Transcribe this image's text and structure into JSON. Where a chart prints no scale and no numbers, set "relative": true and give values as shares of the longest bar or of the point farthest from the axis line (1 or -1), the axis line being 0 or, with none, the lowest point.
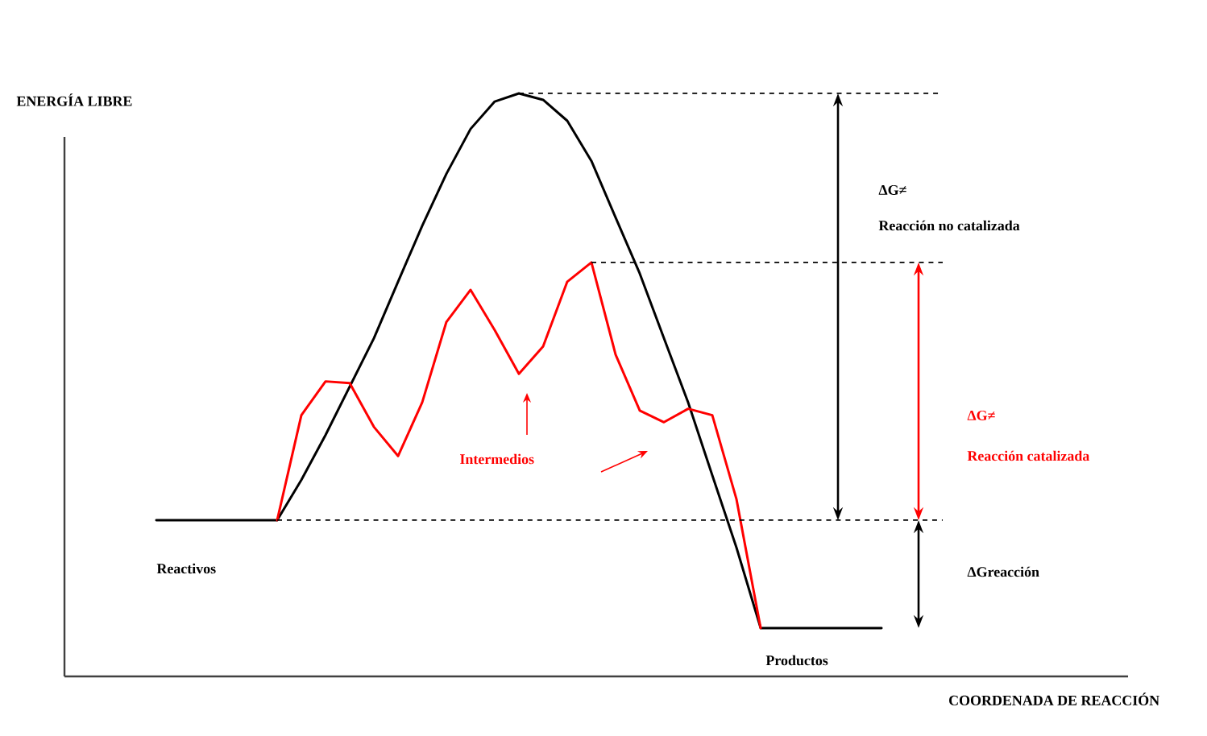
{
  "chart_data": {
    "type": "line",
    "relative": true,
    "xlabel": "COORDENADA  DE REACCIÓN",
    "ylabel": "ENERGÍA LIBRE",
    "marker": "none",
    "line_style": "solid",
    "categories": [
      null,
      null,
      null,
      null,
      null,
      null,
      null,
      null,
      null,
      null,
      null,
      null,
      null,
      null,
      null,
      null,
      null,
      null,
      null,
      null,
      null,
      null,
      null,
      null,
      null,
      null,
      null,
      null,
      null,
      null,
      null
    ],
    "series": [
      {
        "color": "#000000",
        "values": [
          0.268,
          0.268,
          0.268,
          0.268,
          0.268,
          0.268,
          0.337,
          0.414,
          0.497,
          0.58,
          0.677,
          0.773,
          0.862,
          0.939,
          0.986,
          1,
          0.989,
          0.953,
          0.884,
          0.787,
          0.691,
          0.58,
          0.47,
          0.345,
          0.221,
          0.083,
          0.083,
          0.083,
          0.083,
          0.083,
          0.083
        ]
      },
      {
        "color": "#ff0000",
        "values": [
          null,
          null,
          null,
          null,
          null,
          0.268,
          0.448,
          0.506,
          0.503,
          0.428,
          0.378,
          0.47,
          0.608,
          0.663,
          0.594,
          0.519,
          0.566,
          0.677,
          0.71,
          0.552,
          0.456,
          0.436,
          0.459,
          0.448,
          0.304,
          0.083,
          null,
          null,
          null,
          null,
          null
        ]
      }
    ],
    "ref_lines": [
      {
        "axis": "y",
        "value": 1,
        "line_style": "dashed"
      },
      {
        "axis": "y",
        "value": 0.71,
        "line_style": "dashed"
      },
      {
        "axis": "y",
        "value": 0.268,
        "line_style": "dashed"
      }
    ],
    "annotations": [
      "Reactivos",
      "Productos",
      "Intermedios",
      "ΔG≠",
      "Reacción no catalizada",
      "ΔG≠",
      "Reacción catalizada",
      "ΔGreacción"
    ]
  }
}
